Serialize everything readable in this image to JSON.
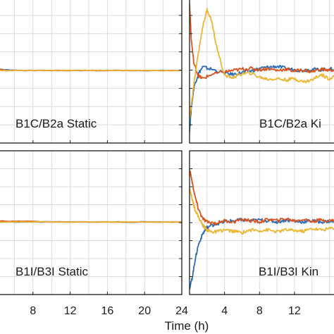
{
  "figure": {
    "xlabel": "Time (h)",
    "colors": {
      "blue": "#2a6db5",
      "red": "#d9531e",
      "yellow": "#eab632",
      "grid": "#dcdcdc",
      "frame": "#1a1a1a"
    }
  },
  "chart_data": [
    {
      "type": "line",
      "panel": "top-left",
      "label": "B1C/B2a Static",
      "xlim": [
        4,
        24
      ],
      "xticks": [
        8,
        12,
        16,
        20,
        24
      ],
      "ylim": [
        -1,
        1
      ],
      "grid": true,
      "series": [
        {
          "color": "#2a6db5",
          "x": [
            4,
            5,
            7,
            10,
            14,
            18,
            22,
            24
          ],
          "y": [
            0.02,
            0.01,
            0.0,
            0.0,
            0.0,
            0.0,
            0.0,
            0.0
          ]
        },
        {
          "color": "#d9531e",
          "x": [
            4,
            5,
            7,
            10,
            14,
            18,
            22,
            24
          ],
          "y": [
            0.03,
            0.0,
            0.0,
            0.0,
            0.0,
            0.0,
            0.0,
            0.0
          ]
        },
        {
          "color": "#eab632",
          "x": [
            4,
            5,
            7,
            10,
            14,
            18,
            22,
            24
          ],
          "y": [
            0.0,
            0.0,
            0.0,
            0.0,
            0.0,
            0.0,
            0.0,
            0.0
          ]
        }
      ]
    },
    {
      "type": "line",
      "panel": "top-right",
      "label": "B1C/B2a Ki",
      "xlim": [
        0,
        17
      ],
      "xticks": [
        4,
        8,
        12
      ],
      "ylim": [
        -1,
        1
      ],
      "grid": true,
      "series": [
        {
          "color": "#2a6db5",
          "x": [
            0,
            0.2,
            0.5,
            1,
            1.5,
            2.5,
            4,
            5,
            6,
            7,
            8,
            9,
            10,
            11,
            12,
            13,
            14,
            15,
            16,
            17
          ],
          "y": [
            -0.9,
            -0.55,
            -0.25,
            -0.05,
            0.05,
            0.02,
            -0.04,
            -0.06,
            -0.03,
            -0.01,
            0.03,
            0.05,
            0.06,
            0.03,
            0.01,
            0.0,
            0.02,
            0.01,
            0.02,
            0.01
          ]
        },
        {
          "color": "#d9531e",
          "x": [
            0,
            0.2,
            0.5,
            1,
            1.5,
            2.5,
            4,
            5,
            6,
            7,
            8,
            9,
            10,
            11,
            12,
            13,
            14,
            15,
            16,
            17
          ],
          "y": [
            1.0,
            0.45,
            0.1,
            -0.08,
            -0.12,
            -0.06,
            -0.02,
            0.0,
            0.02,
            0.03,
            0.01,
            0.03,
            0.0,
            0.02,
            -0.01,
            0.01,
            -0.02,
            0.02,
            0.0,
            0.02
          ]
        },
        {
          "color": "#eab632",
          "x": [
            0,
            0.2,
            0.5,
            1,
            1.5,
            2,
            2.5,
            3,
            4,
            5,
            6,
            7,
            8,
            9,
            10,
            11,
            12,
            13,
            14,
            15,
            16,
            17
          ],
          "y": [
            -0.75,
            -0.5,
            -0.2,
            0.25,
            0.65,
            0.9,
            0.75,
            0.4,
            -0.08,
            -0.1,
            -0.05,
            -0.04,
            -0.1,
            -0.13,
            -0.12,
            -0.14,
            -0.12,
            -0.17,
            -0.14,
            -0.06,
            -0.12,
            -0.05
          ]
        }
      ]
    },
    {
      "type": "line",
      "panel": "bottom-left",
      "label": "B1I/B3I Static",
      "xlim": [
        4,
        24
      ],
      "xticks": [
        8,
        12,
        16,
        20,
        24
      ],
      "ylim": [
        -1,
        1
      ],
      "grid": true,
      "series": [
        {
          "color": "#2a6db5",
          "x": [
            4,
            5,
            7,
            10,
            14,
            18,
            22,
            24
          ],
          "y": [
            0.0,
            0.0,
            0.0,
            0.0,
            0.0,
            0.0,
            0.0,
            0.0
          ]
        },
        {
          "color": "#d9531e",
          "x": [
            4,
            5,
            7,
            10,
            14,
            18,
            22,
            24
          ],
          "y": [
            0.02,
            0.01,
            0.01,
            0.0,
            0.0,
            0.0,
            0.0,
            0.0
          ]
        },
        {
          "color": "#eab632",
          "x": [
            4,
            5,
            7,
            10,
            14,
            18,
            22,
            24
          ],
          "y": [
            0.0,
            0.0,
            0.0,
            0.0,
            0.0,
            0.0,
            0.0,
            0.0
          ]
        }
      ]
    },
    {
      "type": "line",
      "panel": "bottom-right",
      "label": "B1I/B3I Kin",
      "xlim": [
        0,
        17
      ],
      "xticks": [
        4,
        8,
        12
      ],
      "ylim": [
        -1,
        1
      ],
      "grid": true,
      "series": [
        {
          "color": "#2a6db5",
          "x": [
            0,
            0.3,
            0.6,
            1,
            1.5,
            2,
            3,
            4,
            5,
            6,
            7,
            8,
            9,
            10,
            11,
            12,
            13,
            14,
            15,
            16,
            17
          ],
          "y": [
            -1.0,
            -0.85,
            -0.6,
            -0.35,
            -0.18,
            -0.08,
            -0.03,
            0.0,
            0.02,
            0.03,
            0.02,
            0.03,
            0.02,
            0.0,
            0.03,
            0.01,
            0.0,
            0.02,
            0.0,
            0.01,
            0.0
          ]
        },
        {
          "color": "#d9531e",
          "x": [
            0,
            0.3,
            0.6,
            1,
            1.5,
            2,
            3,
            4,
            5,
            6,
            7,
            8,
            9,
            10,
            11,
            12,
            13,
            14,
            15,
            16,
            17
          ],
          "y": [
            0.8,
            0.6,
            0.4,
            0.2,
            0.05,
            0.0,
            -0.02,
            0.02,
            0.0,
            0.04,
            0.02,
            0.0,
            0.04,
            0.02,
            0.05,
            0.02,
            0.04,
            0.01,
            0.03,
            0.02,
            0.03
          ]
        },
        {
          "color": "#eab632",
          "x": [
            0,
            0.3,
            0.6,
            1,
            1.5,
            2,
            2.5,
            3,
            4,
            5,
            6,
            7,
            8,
            9,
            10,
            11,
            12,
            13,
            14,
            15,
            16,
            17
          ],
          "y": [
            0.5,
            0.35,
            0.2,
            0.08,
            -0.05,
            -0.12,
            -0.15,
            -0.15,
            -0.12,
            -0.14,
            -0.16,
            -0.12,
            -0.13,
            -0.12,
            -0.15,
            -0.12,
            -0.13,
            -0.14,
            -0.1,
            -0.12,
            -0.1,
            -0.08
          ]
        }
      ]
    }
  ]
}
